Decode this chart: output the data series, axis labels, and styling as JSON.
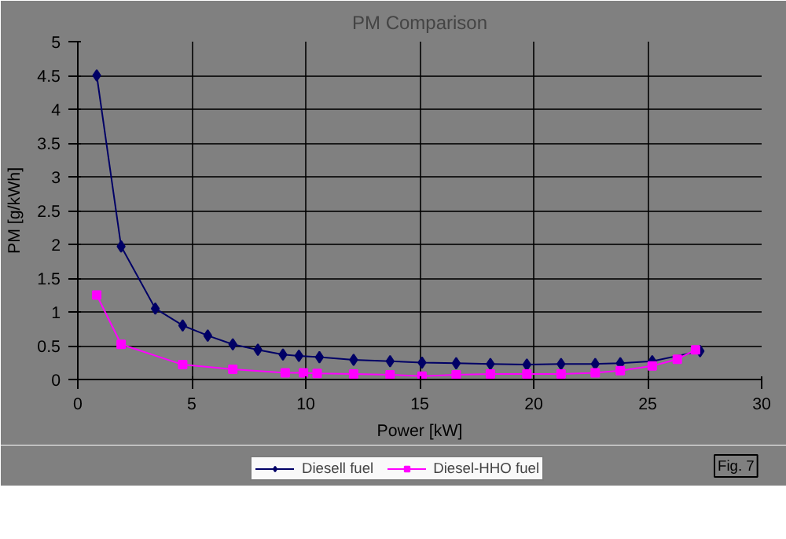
{
  "chart_data": {
    "type": "line",
    "title": "PM Comparison",
    "xlabel": "Power [kW]",
    "ylabel": "PM [g/kWh]",
    "xlim": [
      0,
      30
    ],
    "xticks": [
      0,
      5,
      10,
      15,
      20,
      25,
      30
    ],
    "ylim": [
      0,
      5
    ],
    "yticks": [
      0,
      0.5,
      1,
      1.5,
      2,
      2.5,
      3,
      3.5,
      4,
      4.5,
      5
    ],
    "grid": true,
    "legend": "bottom",
    "annotations": [
      "Fig. 7"
    ],
    "series": [
      {
        "name": "Diesell fuel",
        "color": "#000066",
        "marker": "diamond",
        "x": [
          0.83,
          1.9,
          3.4,
          4.6,
          5.7,
          6.8,
          7.9,
          9.0,
          9.7,
          10.6,
          12.1,
          13.7,
          15.1,
          16.6,
          18.1,
          19.7,
          21.2,
          22.7,
          23.8,
          25.2,
          27.3
        ],
        "values": [
          4.5,
          1.97,
          1.05,
          0.8,
          0.65,
          0.52,
          0.44,
          0.37,
          0.35,
          0.33,
          0.29,
          0.27,
          0.25,
          0.24,
          0.23,
          0.22,
          0.23,
          0.23,
          0.24,
          0.27,
          0.42
        ]
      },
      {
        "name": "Diesel-HHO fuel",
        "color": "#ff00ff",
        "marker": "square",
        "x": [
          0.83,
          1.9,
          4.6,
          6.8,
          9.1,
          9.9,
          10.5,
          12.1,
          13.7,
          15.1,
          16.6,
          18.1,
          19.7,
          21.2,
          22.7,
          23.8,
          25.2,
          26.3,
          27.1
        ],
        "values": [
          1.25,
          0.52,
          0.22,
          0.15,
          0.1,
          0.1,
          0.09,
          0.08,
          0.07,
          0.05,
          0.07,
          0.08,
          0.08,
          0.08,
          0.1,
          0.13,
          0.2,
          0.3,
          0.44
        ]
      }
    ]
  }
}
